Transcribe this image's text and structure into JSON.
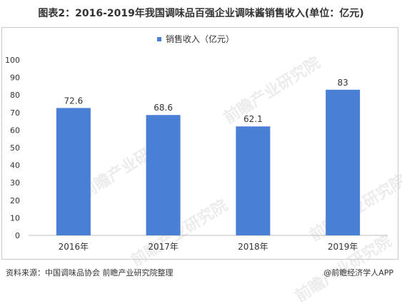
{
  "title": "图表2：2016-2019年我国调味品百强企业调味酱销售收入(单位：亿元)",
  "watermark": "前瞻产业研究院",
  "chart_data": {
    "type": "bar",
    "categories": [
      "2016年",
      "2017年",
      "2018年",
      "2019年"
    ],
    "series": [
      {
        "name": "销售收入（亿元）",
        "values": [
          72.6,
          68.6,
          62.1,
          83
        ],
        "color": "#4a7fd6"
      }
    ],
    "data_labels": [
      "72.6",
      "68.6",
      "62.1",
      "83"
    ],
    "ylim": [
      0,
      100
    ],
    "yticks": [
      0,
      10,
      20,
      30,
      40,
      50,
      60,
      70,
      80,
      90,
      100
    ],
    "grid": false,
    "legend_position": "top-center",
    "xlabel": "",
    "ylabel": ""
  },
  "footer": {
    "source": "资料来源：中国调味品协会 前瞻产业研究院整理",
    "brand": "@前瞻经济学人APP"
  }
}
